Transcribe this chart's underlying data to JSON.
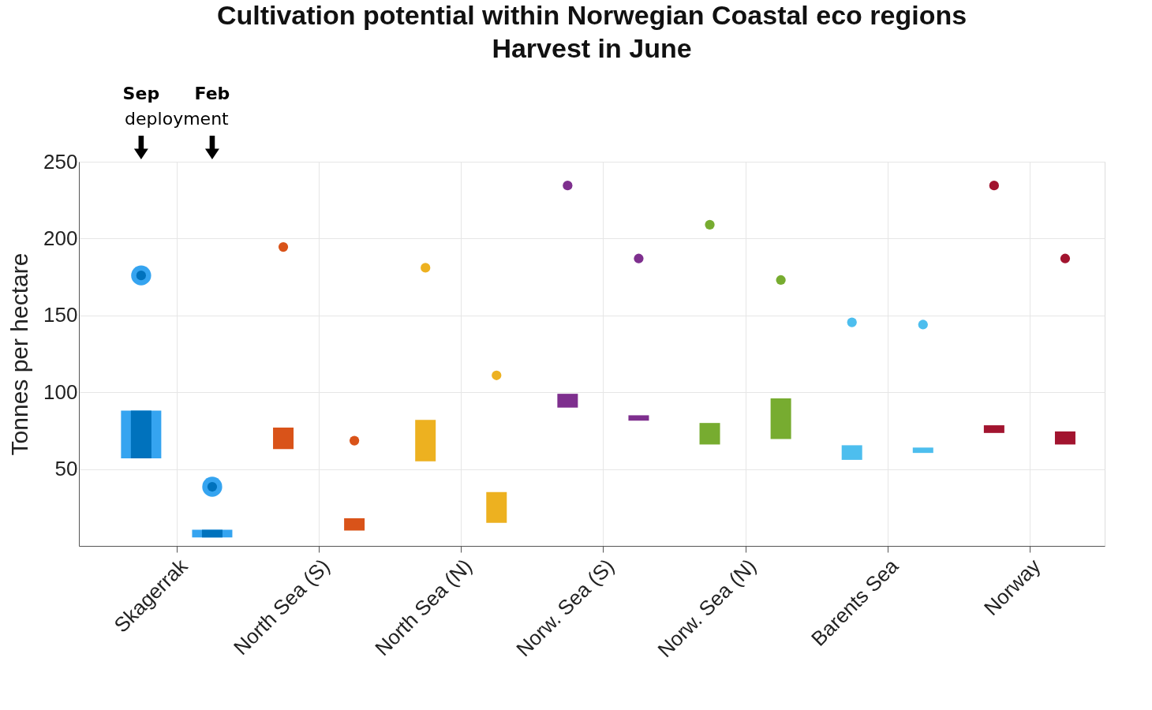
{
  "chart_data": {
    "type": "bar",
    "title": "Cultivation potential within Norwegian Coastal eco regions",
    "subtitle": "Harvest in June",
    "ylabel": "Tonnes per hectare",
    "categories": [
      "Skagerrak",
      "North Sea (S)",
      "North Sea (N)",
      "Norw. Sea (S)",
      "Norw. Sea (N)",
      "Barents Sea",
      "Norway"
    ],
    "ylim": [
      0,
      250
    ],
    "yticks": [
      50,
      100,
      150,
      200,
      250
    ],
    "grid": true,
    "annotations": [
      "Sep",
      "Feb",
      "deployment"
    ],
    "series": [
      {
        "base": [
          57,
          null,
          null,
          null,
          null,
          null,
          null
        ],
        "values": [
          31,
          null,
          null,
          null,
          null,
          null,
          null
        ],
        "color": "#35a4f0"
      },
      {
        "base": [
          5.5,
          null,
          null,
          null,
          null,
          null,
          null
        ],
        "values": [
          5,
          null,
          null,
          null,
          null,
          null,
          null
        ],
        "color": "#35a4f0"
      },
      {
        "base": [
          57,
          63,
          55,
          90,
          66,
          56,
          73.5
        ],
        "values": [
          31,
          14,
          27,
          9,
          14,
          9.5,
          5
        ],
        "colors": [
          "#0072bd",
          "#d95319",
          "#edb120",
          "#7e2f8e",
          "#77ac30",
          "#4dbeee",
          "#a2142f"
        ]
      },
      {
        "base": [
          5.5,
          10,
          15,
          81.5,
          69.5,
          60.5,
          66
        ],
        "values": [
          5,
          8,
          20,
          3.5,
          26.5,
          3.5,
          8.5
        ],
        "colors": [
          "#0072bd",
          "#d95319",
          "#edb120",
          "#7e2f8e",
          "#77ac30",
          "#4dbeee",
          "#a2142f"
        ]
      },
      {
        "type": "scatter",
        "values": [
          176,
          null,
          null,
          null,
          null,
          null,
          null
        ],
        "color": "#35a4f0"
      },
      {
        "type": "scatter",
        "values": [
          38.5,
          null,
          null,
          null,
          null,
          null,
          null
        ],
        "color": "#35a4f0"
      },
      {
        "type": "scatter",
        "values": [
          176,
          194.5,
          181,
          234.5,
          209,
          145.5,
          234.5
        ],
        "colors": [
          "#0072bd",
          "#d95319",
          "#edb120",
          "#7e2f8e",
          "#77ac30",
          "#4dbeee",
          "#a2142f"
        ]
      },
      {
        "type": "scatter",
        "values": [
          38.5,
          68.5,
          111,
          187,
          173,
          144,
          187
        ],
        "colors": [
          "#0072bd",
          "#d95319",
          "#edb120",
          "#7e2f8e",
          "#77ac30",
          "#4dbeee",
          "#a2142f"
        ]
      }
    ]
  }
}
